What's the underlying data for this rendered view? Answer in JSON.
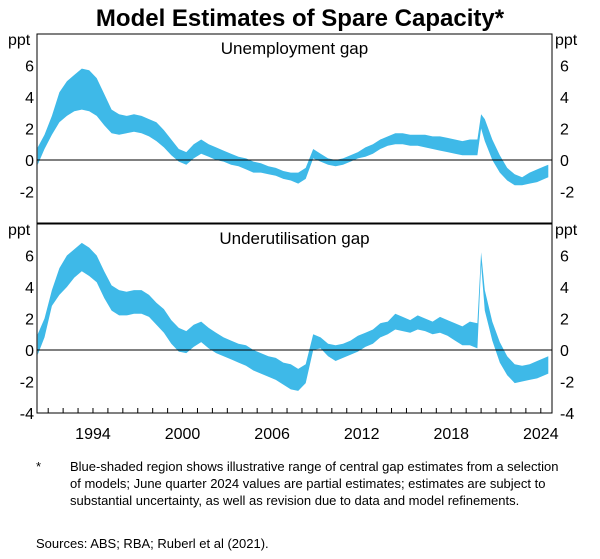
{
  "title": "Model Estimates of Spare Capacity*",
  "footnote": {
    "marker": "*",
    "text": "Blue-shaded region shows illustrative range of central gap estimates from a selection of models; June quarter 2024 values are partial estimates; estimates are subject to substantial uncertainty, as well as revision due to data and model refinements."
  },
  "sources": "Sources: ABS; RBA; Ruberl et al (2021).",
  "colors": {
    "band": "#3eb9e8",
    "axis": "#000000",
    "zero": "#000000"
  },
  "chart_data": [
    {
      "type": "area",
      "title": "Unemployment gap",
      "ylabel": "ppt",
      "ylim": [
        -4,
        8
      ],
      "yticks": [
        -2,
        0,
        2,
        4,
        6
      ],
      "xlim": [
        1990.25,
        2024.75
      ],
      "xticks": [
        1994,
        2000,
        2006,
        2012,
        2018,
        2024
      ],
      "x": [
        1990.3,
        1990.75,
        1991.25,
        1991.75,
        1992.25,
        1992.75,
        1993.25,
        1993.75,
        1994.25,
        1994.75,
        1995.25,
        1995.75,
        1996.25,
        1996.75,
        1997.25,
        1997.75,
        1998.25,
        1998.75,
        1999.25,
        1999.75,
        2000.25,
        2000.75,
        2001.25,
        2001.75,
        2002.25,
        2002.75,
        2003.25,
        2003.75,
        2004.25,
        2004.75,
        2005.25,
        2005.75,
        2006.25,
        2006.75,
        2007.25,
        2007.75,
        2008.25,
        2008.75,
        2009.25,
        2009.75,
        2010.25,
        2010.75,
        2011.25,
        2011.75,
        2012.25,
        2012.75,
        2013.25,
        2013.75,
        2014.25,
        2014.75,
        2015.25,
        2015.75,
        2016.25,
        2016.75,
        2017.25,
        2017.75,
        2018.25,
        2018.75,
        2019.25,
        2019.75,
        2020.0,
        2020.25,
        2020.75,
        2021.25,
        2021.75,
        2022.25,
        2022.75,
        2023.25,
        2023.75,
        2024.25,
        2024.5
      ],
      "upper": [
        0.8,
        1.6,
        2.8,
        4.3,
        5.0,
        5.4,
        5.8,
        5.7,
        5.2,
        4.2,
        3.2,
        2.9,
        2.8,
        2.9,
        2.8,
        2.6,
        2.4,
        1.9,
        1.3,
        0.7,
        0.5,
        1.0,
        1.3,
        1.0,
        0.8,
        0.6,
        0.4,
        0.2,
        0.1,
        -0.1,
        -0.2,
        -0.4,
        -0.5,
        -0.7,
        -0.8,
        -0.8,
        -0.5,
        0.7,
        0.4,
        0.1,
        0.0,
        0.1,
        0.3,
        0.5,
        0.8,
        1.0,
        1.3,
        1.5,
        1.7,
        1.7,
        1.6,
        1.6,
        1.6,
        1.5,
        1.5,
        1.4,
        1.3,
        1.2,
        1.3,
        1.3,
        2.9,
        2.6,
        1.3,
        0.3,
        -0.5,
        -0.9,
        -1.1,
        -0.8,
        -0.6,
        -0.4,
        -0.3
      ],
      "lower": [
        -0.3,
        0.7,
        1.6,
        2.4,
        2.8,
        3.1,
        3.2,
        3.1,
        2.8,
        2.2,
        1.7,
        1.6,
        1.7,
        1.8,
        1.7,
        1.5,
        1.2,
        0.8,
        0.3,
        -0.1,
        -0.3,
        0.1,
        0.4,
        0.2,
        0.0,
        -0.1,
        -0.3,
        -0.4,
        -0.6,
        -0.8,
        -0.8,
        -0.9,
        -1.0,
        -1.2,
        -1.3,
        -1.5,
        -1.2,
        0.1,
        -0.1,
        -0.3,
        -0.4,
        -0.3,
        -0.1,
        0.1,
        0.2,
        0.4,
        0.7,
        0.9,
        1.0,
        1.0,
        0.9,
        0.9,
        0.8,
        0.7,
        0.6,
        0.5,
        0.4,
        0.3,
        0.3,
        0.3,
        2.0,
        1.2,
        0.0,
        -0.8,
        -1.3,
        -1.6,
        -1.6,
        -1.5,
        -1.4,
        -1.2,
        -1.1
      ]
    },
    {
      "type": "area",
      "title": "Underutilisation gap",
      "ylabel": "ppt",
      "ylim": [
        -4,
        8
      ],
      "yticks": [
        -4,
        -2,
        0,
        2,
        4,
        6
      ],
      "xlim": [
        1990.25,
        2024.75
      ],
      "xticks": [
        1994,
        2000,
        2006,
        2012,
        2018,
        2024
      ],
      "xticklabels": [
        "1994",
        "2000",
        "2006",
        "2012",
        "2018",
        "2024"
      ],
      "x": [
        1990.3,
        1990.75,
        1991.25,
        1991.75,
        1992.25,
        1992.75,
        1993.25,
        1993.75,
        1994.25,
        1994.75,
        1995.25,
        1995.75,
        1996.25,
        1996.75,
        1997.25,
        1997.75,
        1998.25,
        1998.75,
        1999.25,
        1999.75,
        2000.25,
        2000.75,
        2001.25,
        2001.75,
        2002.25,
        2002.75,
        2003.25,
        2003.75,
        2004.25,
        2004.75,
        2005.25,
        2005.75,
        2006.25,
        2006.75,
        2007.25,
        2007.75,
        2008.25,
        2008.75,
        2009.25,
        2009.75,
        2010.25,
        2010.75,
        2011.25,
        2011.75,
        2012.25,
        2012.75,
        2013.25,
        2013.75,
        2014.25,
        2014.75,
        2015.25,
        2015.75,
        2016.25,
        2016.75,
        2017.25,
        2017.75,
        2018.25,
        2018.75,
        2019.25,
        2019.75,
        2020.0,
        2020.25,
        2020.75,
        2021.25,
        2021.75,
        2022.25,
        2022.75,
        2023.25,
        2023.75,
        2024.25,
        2024.5
      ],
      "upper": [
        1.0,
        2.0,
        3.8,
        5.2,
        6.0,
        6.4,
        6.8,
        6.5,
        6.0,
        5.0,
        4.1,
        3.8,
        3.7,
        3.8,
        3.8,
        3.5,
        3.0,
        2.6,
        1.9,
        1.4,
        1.2,
        1.6,
        1.8,
        1.4,
        1.1,
        0.8,
        0.6,
        0.4,
        0.3,
        0.0,
        -0.2,
        -0.4,
        -0.5,
        -0.8,
        -0.9,
        -1.2,
        -0.9,
        1.0,
        0.8,
        0.4,
        0.3,
        0.4,
        0.6,
        0.9,
        1.1,
        1.3,
        1.7,
        1.8,
        2.3,
        2.1,
        1.9,
        2.2,
        2.0,
        1.8,
        2.1,
        1.9,
        1.7,
        1.5,
        1.8,
        1.7,
        6.2,
        3.8,
        1.8,
        0.5,
        -0.4,
        -0.9,
        -1.0,
        -0.9,
        -0.7,
        -0.5,
        -0.4
      ],
      "lower": [
        -0.3,
        0.8,
        2.8,
        3.5,
        4.0,
        4.6,
        5.0,
        4.7,
        4.3,
        3.3,
        2.5,
        2.2,
        2.2,
        2.3,
        2.3,
        2.1,
        1.6,
        1.1,
        0.4,
        -0.1,
        -0.2,
        0.2,
        0.5,
        0.1,
        -0.2,
        -0.4,
        -0.6,
        -0.8,
        -1.0,
        -1.3,
        -1.5,
        -1.7,
        -1.9,
        -2.2,
        -2.5,
        -2.6,
        -2.1,
        0.0,
        0.1,
        -0.4,
        -0.7,
        -0.5,
        -0.3,
        -0.1,
        0.2,
        0.4,
        0.8,
        1.0,
        1.3,
        1.2,
        1.1,
        1.3,
        1.2,
        1.0,
        1.1,
        0.9,
        0.6,
        0.3,
        0.3,
        0.1,
        5.4,
        2.5,
        0.6,
        -0.8,
        -1.6,
        -2.1,
        -2.0,
        -1.9,
        -1.8,
        -1.6,
        -1.5
      ]
    }
  ]
}
